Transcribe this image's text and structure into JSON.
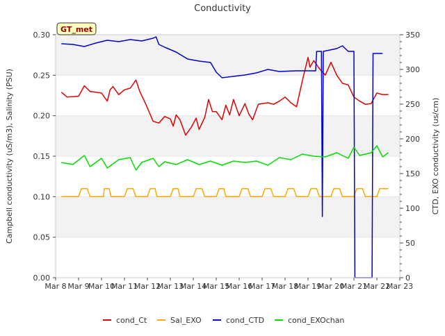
{
  "chart_data": {
    "type": "line",
    "title": "Conductivity",
    "annotation": "GT_met",
    "ylabel": "Campbell conductivity (uS/m3), Salinity (PSU)",
    "ylabel_right": "CTD, EXO conductivity (us/cm)",
    "xlim": [
      "2024-03-08",
      "2024-03-23"
    ],
    "ylim": [
      0.0,
      0.3
    ],
    "ylim_right": [
      0,
      350
    ],
    "x_ticks": [
      "Mar 8",
      "Mar 9",
      "Mar 10",
      "Mar 11",
      "Mar 12",
      "Mar 13",
      "Mar 14",
      "Mar 15",
      "Mar 16",
      "Mar 17",
      "Mar 18",
      "Mar 19",
      "Mar 20",
      "Mar 21",
      "Mar 22",
      "Mar 23"
    ],
    "y_ticks": [
      "0.00",
      "0.05",
      "0.10",
      "0.15",
      "0.20",
      "0.25",
      "0.30"
    ],
    "y_ticks_right": [
      "0",
      "50",
      "100",
      "150",
      "200",
      "250",
      "300",
      "350"
    ],
    "grid": "horizontal bands",
    "legend_position": "bottom",
    "series": [
      {
        "name": "cond_Ct",
        "axis": "left",
        "color": "#dd0000",
        "points": [
          [
            "2024-03-08 06:00",
            0.229
          ],
          [
            "2024-03-08 12:00",
            0.223
          ],
          [
            "2024-03-09 00:00",
            0.224
          ],
          [
            "2024-03-09 06:00",
            0.237
          ],
          [
            "2024-03-09 12:00",
            0.23
          ],
          [
            "2024-03-10 00:00",
            0.228
          ],
          [
            "2024-03-10 06:00",
            0.218
          ],
          [
            "2024-03-10 09:00",
            0.232
          ],
          [
            "2024-03-10 12:00",
            0.236
          ],
          [
            "2024-03-10 18:00",
            0.226
          ],
          [
            "2024-03-11 00:00",
            0.232
          ],
          [
            "2024-03-11 06:00",
            0.234
          ],
          [
            "2024-03-11 12:00",
            0.244
          ],
          [
            "2024-03-11 16:00",
            0.23
          ],
          [
            "2024-03-11 22:00",
            0.215
          ],
          [
            "2024-03-12 02:00",
            0.204
          ],
          [
            "2024-03-12 06:00",
            0.193
          ],
          [
            "2024-03-12 12:00",
            0.191
          ],
          [
            "2024-03-12 18:00",
            0.199
          ],
          [
            "2024-03-13 00:00",
            0.196
          ],
          [
            "2024-03-13 03:00",
            0.187
          ],
          [
            "2024-03-13 06:00",
            0.201
          ],
          [
            "2024-03-13 10:00",
            0.195
          ],
          [
            "2024-03-13 16:00",
            0.176
          ],
          [
            "2024-03-13 22:00",
            0.186
          ],
          [
            "2024-03-14 03:00",
            0.197
          ],
          [
            "2024-03-14 06:00",
            0.183
          ],
          [
            "2024-03-14 12:00",
            0.198
          ],
          [
            "2024-03-14 16:00",
            0.22
          ],
          [
            "2024-03-14 20:00",
            0.205
          ],
          [
            "2024-03-15 00:00",
            0.205
          ],
          [
            "2024-03-15 06:00",
            0.195
          ],
          [
            "2024-03-15 10:00",
            0.213
          ],
          [
            "2024-03-15 14:00",
            0.201
          ],
          [
            "2024-03-15 18:00",
            0.22
          ],
          [
            "2024-03-16 00:00",
            0.2
          ],
          [
            "2024-03-16 06:00",
            0.215
          ],
          [
            "2024-03-16 10:00",
            0.202
          ],
          [
            "2024-03-16 14:00",
            0.195
          ],
          [
            "2024-03-16 20:00",
            0.214
          ],
          [
            "2024-03-17 06:00",
            0.216
          ],
          [
            "2024-03-17 12:00",
            0.214
          ],
          [
            "2024-03-17 18:00",
            0.218
          ],
          [
            "2024-03-18 00:00",
            0.223
          ],
          [
            "2024-03-18 06:00",
            0.216
          ],
          [
            "2024-03-18 12:00",
            0.211
          ],
          [
            "2024-03-18 18:00",
            0.243
          ],
          [
            "2024-03-19 00:00",
            0.272
          ],
          [
            "2024-03-19 02:00",
            0.26
          ],
          [
            "2024-03-19 06:00",
            0.268
          ],
          [
            "2024-03-19 12:00",
            0.258
          ],
          [
            "2024-03-19 18:00",
            0.25
          ],
          [
            "2024-03-20 00:00",
            0.266
          ],
          [
            "2024-03-20 06:00",
            0.25
          ],
          [
            "2024-03-20 12:00",
            0.24
          ],
          [
            "2024-03-20 18:00",
            0.238
          ],
          [
            "2024-03-21 00:00",
            0.223
          ],
          [
            "2024-03-21 06:00",
            0.218
          ],
          [
            "2024-03-21 12:00",
            0.214
          ],
          [
            "2024-03-21 18:00",
            0.215
          ],
          [
            "2024-03-22 00:00",
            0.228
          ],
          [
            "2024-03-22 06:00",
            0.226
          ],
          [
            "2024-03-22 12:00",
            0.226
          ]
        ]
      },
      {
        "name": "Sal_EXO",
        "axis": "left",
        "color": "#ffa500",
        "points": [
          [
            "2024-03-08 06:00",
            0.1
          ],
          [
            "2024-03-09 00:00",
            0.1
          ],
          [
            "2024-03-09 03:00",
            0.11
          ],
          [
            "2024-03-09 09:00",
            0.11
          ],
          [
            "2024-03-09 12:00",
            0.1
          ],
          [
            "2024-03-10 02:00",
            0.1
          ],
          [
            "2024-03-10 03:00",
            0.11
          ],
          [
            "2024-03-10 08:00",
            0.11
          ],
          [
            "2024-03-10 10:00",
            0.1
          ],
          [
            "2024-03-11 00:00",
            0.1
          ],
          [
            "2024-03-11 03:00",
            0.11
          ],
          [
            "2024-03-11 09:00",
            0.11
          ],
          [
            "2024-03-11 12:00",
            0.1
          ],
          [
            "2024-03-12 00:00",
            0.1
          ],
          [
            "2024-03-12 03:00",
            0.11
          ],
          [
            "2024-03-12 08:00",
            0.11
          ],
          [
            "2024-03-12 10:00",
            0.1
          ],
          [
            "2024-03-13 00:00",
            0.1
          ],
          [
            "2024-03-13 03:00",
            0.11
          ],
          [
            "2024-03-13 08:00",
            0.11
          ],
          [
            "2024-03-13 10:00",
            0.1
          ],
          [
            "2024-03-14 00:00",
            0.1
          ],
          [
            "2024-03-14 03:00",
            0.11
          ],
          [
            "2024-03-14 09:00",
            0.11
          ],
          [
            "2024-03-14 12:00",
            0.1
          ],
          [
            "2024-03-15 00:00",
            0.1
          ],
          [
            "2024-03-15 03:00",
            0.11
          ],
          [
            "2024-03-15 08:00",
            0.11
          ],
          [
            "2024-03-15 10:00",
            0.1
          ],
          [
            "2024-03-16 00:00",
            0.1
          ],
          [
            "2024-03-16 03:00",
            0.11
          ],
          [
            "2024-03-16 09:00",
            0.11
          ],
          [
            "2024-03-16 12:00",
            0.1
          ],
          [
            "2024-03-17 00:00",
            0.1
          ],
          [
            "2024-03-17 03:00",
            0.11
          ],
          [
            "2024-03-17 09:00",
            0.11
          ],
          [
            "2024-03-17 12:00",
            0.1
          ],
          [
            "2024-03-18 00:00",
            0.1
          ],
          [
            "2024-03-18 03:00",
            0.11
          ],
          [
            "2024-03-18 09:00",
            0.11
          ],
          [
            "2024-03-18 12:00",
            0.1
          ],
          [
            "2024-03-19 00:00",
            0.1
          ],
          [
            "2024-03-19 03:00",
            0.11
          ],
          [
            "2024-03-19 09:00",
            0.11
          ],
          [
            "2024-03-19 12:00",
            0.1
          ],
          [
            "2024-03-20 00:00",
            0.1
          ],
          [
            "2024-03-20 03:00",
            0.11
          ],
          [
            "2024-03-20 09:00",
            0.11
          ],
          [
            "2024-03-20 12:00",
            0.1
          ],
          [
            "2024-03-21 00:00",
            0.1
          ],
          [
            "2024-03-21 03:00",
            0.11
          ],
          [
            "2024-03-21 09:00",
            0.11
          ],
          [
            "2024-03-21 12:00",
            0.1
          ],
          [
            "2024-03-22 00:00",
            0.1
          ],
          [
            "2024-03-22 03:00",
            0.11
          ],
          [
            "2024-03-22 12:00",
            0.11
          ]
        ]
      },
      {
        "name": "cond_CTD",
        "axis": "right",
        "color": "#0000cc",
        "points": [
          [
            "2024-03-08 06:00",
            337
          ],
          [
            "2024-03-08 18:00",
            336
          ],
          [
            "2024-03-09 06:00",
            333
          ],
          [
            "2024-03-09 18:00",
            338
          ],
          [
            "2024-03-10 06:00",
            342
          ],
          [
            "2024-03-10 18:00",
            340
          ],
          [
            "2024-03-11 06:00",
            343
          ],
          [
            "2024-03-11 18:00",
            341
          ],
          [
            "2024-03-12 06:00",
            345
          ],
          [
            "2024-03-12 09:00",
            347
          ],
          [
            "2024-03-12 12:00",
            336
          ],
          [
            "2024-03-12 18:00",
            332
          ],
          [
            "2024-03-13 06:00",
            325
          ],
          [
            "2024-03-13 18:00",
            315
          ],
          [
            "2024-03-14 06:00",
            312
          ],
          [
            "2024-03-14 18:00",
            310
          ],
          [
            "2024-03-15 00:00",
            296
          ],
          [
            "2024-03-15 06:00",
            288
          ],
          [
            "2024-03-15 18:00",
            290
          ],
          [
            "2024-03-16 06:00",
            292
          ],
          [
            "2024-03-16 18:00",
            295
          ],
          [
            "2024-03-17 06:00",
            300
          ],
          [
            "2024-03-17 18:00",
            297
          ],
          [
            "2024-03-18 12:00",
            298
          ],
          [
            "2024-03-19 00:00",
            298
          ],
          [
            "2024-03-19 08:00",
            298
          ],
          [
            "2024-03-19 09:00",
            326
          ],
          [
            "2024-03-19 14:00",
            326
          ],
          [
            "2024-03-19 15:00",
            88
          ],
          [
            "2024-03-19 16:00",
            326
          ],
          [
            "2024-03-20 06:00",
            330
          ],
          [
            "2024-03-20 12:00",
            334
          ],
          [
            "2024-03-20 18:00",
            326
          ],
          [
            "2024-03-21 00:00",
            326
          ],
          [
            "2024-03-21 01:00",
            0
          ],
          [
            "2024-03-21 19:00",
            0
          ],
          [
            "2024-03-21 20:00",
            323
          ],
          [
            "2024-03-22 06:00",
            323
          ]
        ]
      },
      {
        "name": "cond_EXOchan",
        "axis": "right",
        "color": "#00dd00",
        "points": [
          [
            "2024-03-08 06:00",
            166
          ],
          [
            "2024-03-08 18:00",
            163
          ],
          [
            "2024-03-09 06:00",
            176
          ],
          [
            "2024-03-09 12:00",
            160
          ],
          [
            "2024-03-10 00:00",
            172
          ],
          [
            "2024-03-10 06:00",
            158
          ],
          [
            "2024-03-10 18:00",
            170
          ],
          [
            "2024-03-11 06:00",
            173
          ],
          [
            "2024-03-11 12:00",
            155
          ],
          [
            "2024-03-11 18:00",
            166
          ],
          [
            "2024-03-12 06:00",
            172
          ],
          [
            "2024-03-12 12:00",
            160
          ],
          [
            "2024-03-12 18:00",
            167
          ],
          [
            "2024-03-13 06:00",
            163
          ],
          [
            "2024-03-13 18:00",
            170
          ],
          [
            "2024-03-14 06:00",
            163
          ],
          [
            "2024-03-14 18:00",
            168
          ],
          [
            "2024-03-15 06:00",
            162
          ],
          [
            "2024-03-15 18:00",
            168
          ],
          [
            "2024-03-16 06:00",
            166
          ],
          [
            "2024-03-16 18:00",
            168
          ],
          [
            "2024-03-17 06:00",
            162
          ],
          [
            "2024-03-17 18:00",
            173
          ],
          [
            "2024-03-18 06:00",
            170
          ],
          [
            "2024-03-18 18:00",
            178
          ],
          [
            "2024-03-19 06:00",
            175
          ],
          [
            "2024-03-19 18:00",
            174
          ],
          [
            "2024-03-20 06:00",
            180
          ],
          [
            "2024-03-20 18:00",
            172
          ],
          [
            "2024-03-21 00:00",
            188
          ],
          [
            "2024-03-21 06:00",
            176
          ],
          [
            "2024-03-21 18:00",
            180
          ],
          [
            "2024-03-22 00:00",
            190
          ],
          [
            "2024-03-22 06:00",
            174
          ],
          [
            "2024-03-22 12:00",
            180
          ]
        ]
      }
    ]
  }
}
